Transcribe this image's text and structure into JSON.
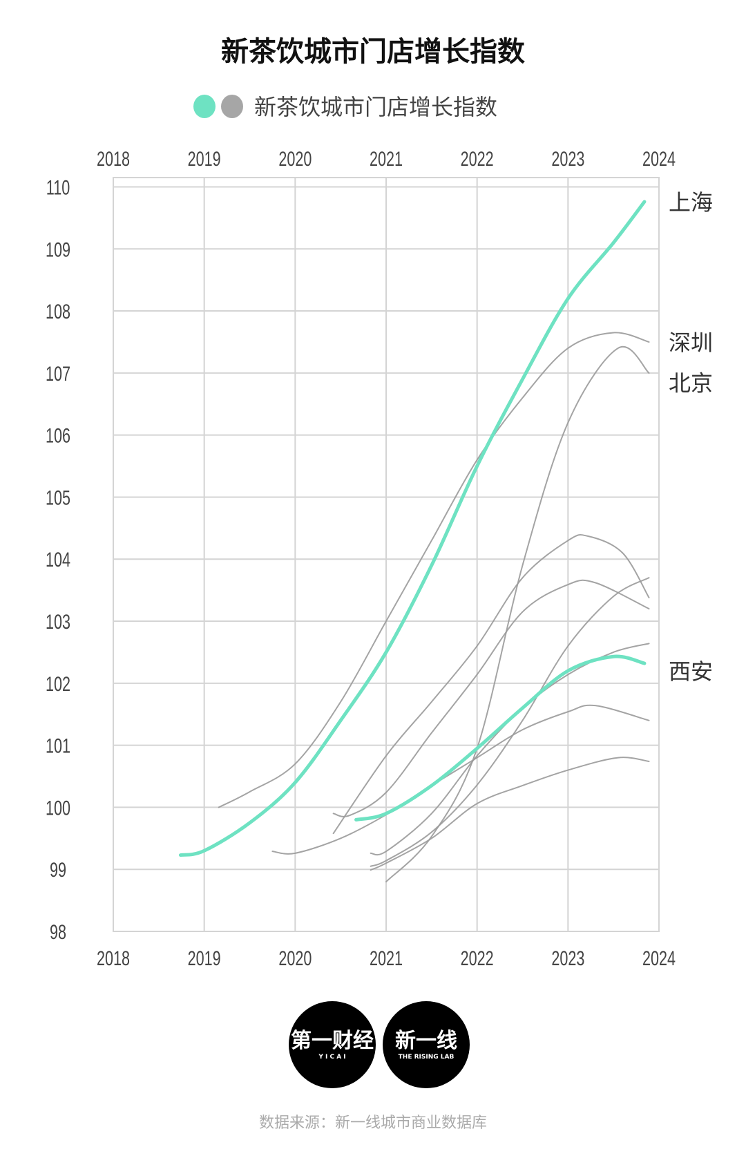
{
  "colors": {
    "highlight": "#6ee2c2",
    "other": "#9a9a9a",
    "grid": "#d4d4d4"
  },
  "logos": {
    "yicai": {
      "main": "第一财经",
      "sub": "Y I C A I"
    },
    "rising_lab": {
      "main": "新一线",
      "sub": "THE RISING LAB"
    }
  },
  "source": "数据来源：新一线城市商业数据库",
  "chart_data": {
    "type": "line",
    "title": "新茶饮城市门店增长指数",
    "legend": {
      "label": "新茶饮城市门店增长指数",
      "position": "top",
      "markers": [
        "#6ee2c2",
        "#a6a6a6"
      ]
    },
    "xlabel": "",
    "ylabel": "",
    "x_ticks": [
      "2018",
      "2019",
      "2020",
      "2021",
      "2022",
      "2023",
      "2024"
    ],
    "y_ticks": [
      "98",
      "99",
      "100",
      "101",
      "102",
      "103",
      "104",
      "105",
      "106",
      "107",
      "108",
      "109",
      "110"
    ],
    "xlim": [
      2018,
      2024
    ],
    "ylim": [
      98,
      110.15
    ],
    "grid": true,
    "series": [
      {
        "name": "上海",
        "highlight": true,
        "points": [
          [
            2018.74,
            99.23
          ],
          [
            2019,
            99.3
          ],
          [
            2019.5,
            99.75
          ],
          [
            2020,
            100.4
          ],
          [
            2020.5,
            101.4
          ],
          [
            2021,
            102.5
          ],
          [
            2021.5,
            103.9
          ],
          [
            2022,
            105.5
          ],
          [
            2022.5,
            106.9
          ],
          [
            2023,
            108.2
          ],
          [
            2023.5,
            109.1
          ],
          [
            2023.84,
            109.76
          ]
        ]
      },
      {
        "name": "西安",
        "highlight": true,
        "points": [
          [
            2020.67,
            99.8
          ],
          [
            2021,
            99.9
          ],
          [
            2021.5,
            100.35
          ],
          [
            2022,
            100.95
          ],
          [
            2022.5,
            101.6
          ],
          [
            2023,
            102.2
          ],
          [
            2023.5,
            102.43
          ],
          [
            2023.84,
            102.32
          ]
        ]
      },
      {
        "name": "深圳",
        "highlight": false,
        "points": [
          [
            2019.16,
            100.0
          ],
          [
            2019.5,
            100.25
          ],
          [
            2020,
            100.7
          ],
          [
            2020.5,
            101.7
          ],
          [
            2021,
            103.0
          ],
          [
            2021.5,
            104.3
          ],
          [
            2022,
            105.6
          ],
          [
            2022.5,
            106.6
          ],
          [
            2023,
            107.4
          ],
          [
            2023.5,
            107.65
          ],
          [
            2023.89,
            107.5
          ]
        ]
      },
      {
        "name": "北京",
        "highlight": false,
        "points": [
          [
            2021.0,
            98.8
          ],
          [
            2021.5,
            99.53
          ],
          [
            2022,
            100.95
          ],
          [
            2022.5,
            103.9
          ],
          [
            2023,
            106.2
          ],
          [
            2023.55,
            107.4
          ],
          [
            2023.89,
            107.0
          ]
        ]
      },
      {
        "highlight": false,
        "points": [
          [
            2020.42,
            99.58
          ],
          [
            2021,
            100.83
          ],
          [
            2021.5,
            101.7
          ],
          [
            2022,
            102.6
          ],
          [
            2022.5,
            103.7
          ],
          [
            2023,
            104.3
          ],
          [
            2023.22,
            104.37
          ],
          [
            2023.6,
            104.1
          ],
          [
            2023.89,
            103.38
          ]
        ]
      },
      {
        "highlight": false,
        "points": [
          [
            2020.42,
            99.9
          ],
          [
            2020.6,
            99.87
          ],
          [
            2021,
            100.24
          ],
          [
            2021.5,
            101.2
          ],
          [
            2022,
            102.14
          ],
          [
            2022.5,
            103.15
          ],
          [
            2023,
            103.59
          ],
          [
            2023.3,
            103.62
          ],
          [
            2023.89,
            103.2
          ]
        ]
      },
      {
        "highlight": false,
        "points": [
          [
            2020.83,
            99.05
          ],
          [
            2021,
            99.14
          ],
          [
            2021.5,
            99.6
          ],
          [
            2022,
            100.36
          ],
          [
            2022.5,
            101.4
          ],
          [
            2023,
            102.6
          ],
          [
            2023.5,
            103.4
          ],
          [
            2023.89,
            103.7
          ]
        ]
      },
      {
        "highlight": false,
        "points": [
          [
            2020.83,
            99.26
          ],
          [
            2021,
            99.29
          ],
          [
            2021.5,
            99.9
          ],
          [
            2022,
            100.83
          ],
          [
            2022.5,
            101.6
          ],
          [
            2023,
            102.14
          ],
          [
            2023.5,
            102.5
          ],
          [
            2023.89,
            102.64
          ]
        ]
      },
      {
        "highlight": false,
        "points": [
          [
            2019.75,
            99.29
          ],
          [
            2020,
            99.26
          ],
          [
            2020.5,
            99.5
          ],
          [
            2021,
            99.88
          ],
          [
            2021.5,
            100.35
          ],
          [
            2022,
            100.8
          ],
          [
            2022.5,
            101.25
          ],
          [
            2023,
            101.54
          ],
          [
            2023.3,
            101.64
          ],
          [
            2023.89,
            101.4
          ]
        ]
      },
      {
        "highlight": false,
        "points": [
          [
            2020.83,
            98.99
          ],
          [
            2021,
            99.1
          ],
          [
            2021.5,
            99.5
          ],
          [
            2022,
            100.06
          ],
          [
            2022.5,
            100.35
          ],
          [
            2023,
            100.6
          ],
          [
            2023.55,
            100.8
          ],
          [
            2023.89,
            100.74
          ]
        ]
      }
    ],
    "series_labels": [
      {
        "text": "上海",
        "value": 109.76
      },
      {
        "text": "深圳",
        "value": 107.5
      },
      {
        "text": "北京",
        "value": 106.85
      },
      {
        "text": "西安",
        "value": 102.2
      }
    ]
  }
}
